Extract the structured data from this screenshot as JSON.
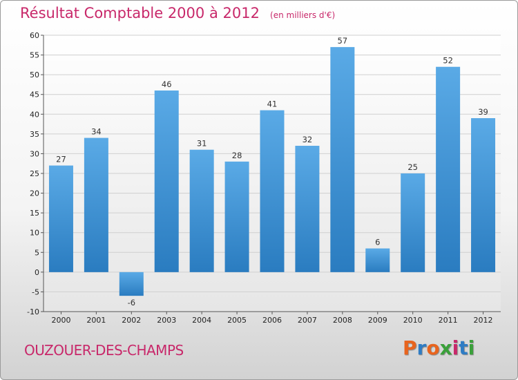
{
  "header": {
    "title": "Résultat Comptable 2000 à 2012",
    "unit": "(en milliers d'€)"
  },
  "footer": {
    "commune": "OUZOUER-DES-CHAMPS",
    "brand": "Proxiti"
  },
  "colors": {
    "title": "#c8286a",
    "bar_top": "#5aaae6",
    "bar_bottom": "#2a7cc0",
    "brand_letters": [
      "#e8641e",
      "#2e7cc4",
      "#e8641e",
      "#3aa03a",
      "#c8286a",
      "#2e7cc4",
      "#3aa03a"
    ]
  },
  "chart_data": {
    "type": "bar",
    "title": "Résultat Comptable 2000 à 2012",
    "xlabel": "",
    "ylabel": "",
    "ylim": [
      -10,
      60
    ],
    "yticks": [
      -10,
      -5,
      0,
      5,
      10,
      15,
      20,
      25,
      30,
      35,
      40,
      45,
      50,
      55,
      60
    ],
    "grid": true,
    "categories": [
      "2000",
      "2001",
      "2002",
      "2003",
      "2004",
      "2005",
      "2006",
      "2007",
      "2008",
      "2009",
      "2010",
      "2011",
      "2012"
    ],
    "values": [
      27,
      34,
      -6,
      46,
      31,
      28,
      41,
      32,
      57,
      6,
      25,
      52,
      39
    ]
  }
}
